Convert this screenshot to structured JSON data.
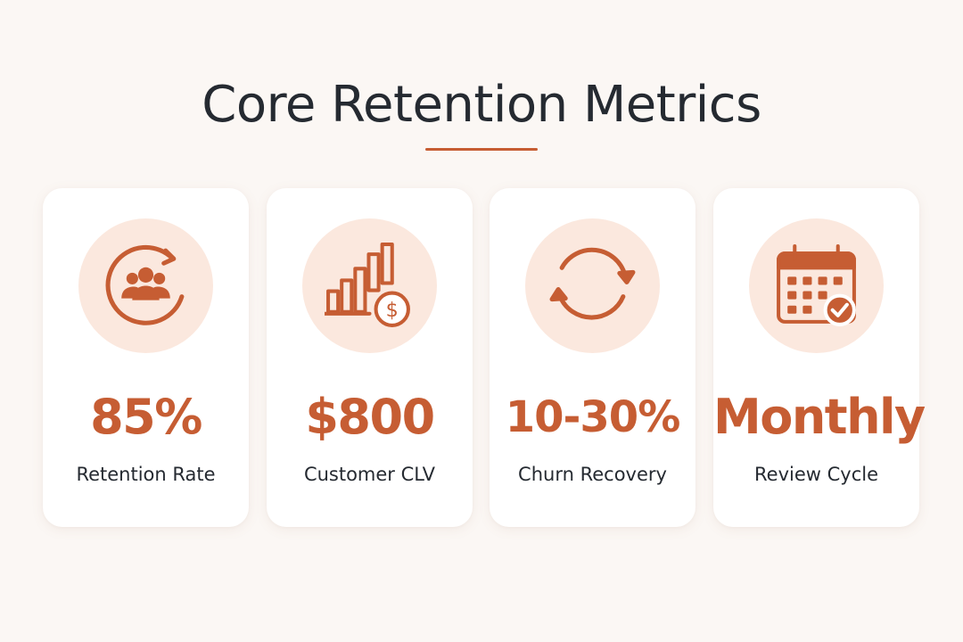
{
  "header": {
    "title": "Core Retention Metrics"
  },
  "colors": {
    "accent": "#c65d33",
    "icon_circle": "#fbe8de",
    "title": "#252a31",
    "background": "#fbf7f4",
    "card": "#ffffff"
  },
  "metrics": [
    {
      "value": "85%",
      "label": "Retention Rate",
      "icon": "users-cycle-icon"
    },
    {
      "value": "$800",
      "label": "Customer CLV",
      "icon": "bar-chart-dollar-icon"
    },
    {
      "value": "10-30%",
      "label": "Churn Recovery",
      "icon": "refresh-cycle-icon"
    },
    {
      "value": "Monthly",
      "label": "Review Cycle",
      "icon": "calendar-check-icon"
    }
  ]
}
